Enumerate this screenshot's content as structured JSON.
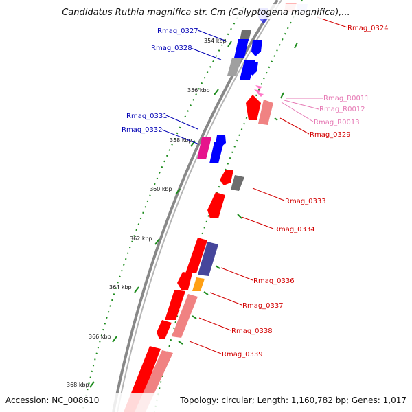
{
  "title": "Candidatus Ruthia magnifica str. Cm (Calyptogena magnifica),...",
  "footer": {
    "accession": "Accession: NC_008610",
    "summary": "Topology: circular; Length: 1,160,782 bp; Genes: 1,017"
  },
  "colors": {
    "backbone": "#909090",
    "tick": "#1e8c1e",
    "blue_label": "#0000b4",
    "red_label": "#d20000",
    "pink_label": "#e678b4",
    "gene_red": "#ff0000",
    "gene_blue": "#0000ff",
    "gene_gray": "#6e6e6e",
    "gene_magenta": "#e6148c",
    "gene_navy": "#46469b",
    "gene_orange": "#ffa014",
    "gene_salmon": "#f08282"
  },
  "kbp_markers": [
    "354 kbp",
    "356 kbp",
    "358 kbp",
    "360 kbp",
    "362 kbp",
    "364 kbp",
    "366 kbp",
    "368 kbp"
  ],
  "gene_labels": {
    "blue": [
      "Rmag_0327",
      "Rmag_0328",
      "Rmag_0331",
      "Rmag_0332"
    ],
    "pink": [
      "Rmag_R0011",
      "Rmag_R0012",
      "Rmag_R0013"
    ],
    "red": [
      "Rmag_0324",
      "Rmag_0329",
      "Rmag_0333",
      "Rmag_0334",
      "Rmag_0336",
      "Rmag_0337",
      "Rmag_0338",
      "Rmag_0339"
    ]
  }
}
